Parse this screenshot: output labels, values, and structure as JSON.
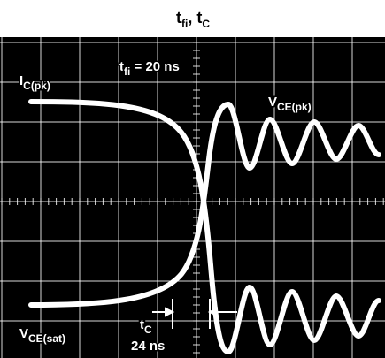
{
  "title": [
    {
      "text": "t",
      "sub": "fi"
    },
    {
      "text": ", t",
      "sub": "C"
    }
  ],
  "labels": {
    "ic_pk": {
      "text": "I",
      "sub": "C(pk)"
    },
    "tfi": {
      "text": "t",
      "sub": "fi",
      "rest": " = 20 ns"
    },
    "vce_pk": {
      "text": "V",
      "sub": "CE(pk)"
    },
    "vce_sat": {
      "text": "V",
      "sub": "CE(sat)"
    },
    "tc": {
      "text": "t",
      "sub": "C"
    },
    "tc_value": "24 ns"
  }
}
